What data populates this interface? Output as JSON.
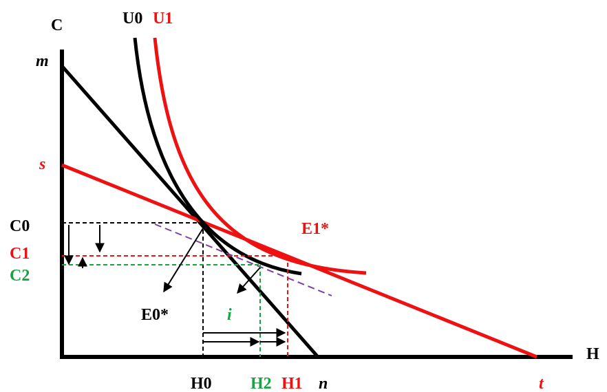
{
  "labels": {
    "y_axis": "C",
    "x_axis": "H",
    "m": "m",
    "s": "s",
    "n": "n",
    "t": "t",
    "u0": "U0",
    "u1": "U1",
    "c0": "C0",
    "c1": "C1",
    "c2": "C2",
    "h0": "H0",
    "h1": "H1",
    "h2": "H2",
    "e0": "E0*",
    "e1": "E1*",
    "i": "i"
  },
  "colors": {
    "black": "#000000",
    "red": "#ee1111",
    "green": "#16a340",
    "purple": "#7b3fa0"
  }
}
